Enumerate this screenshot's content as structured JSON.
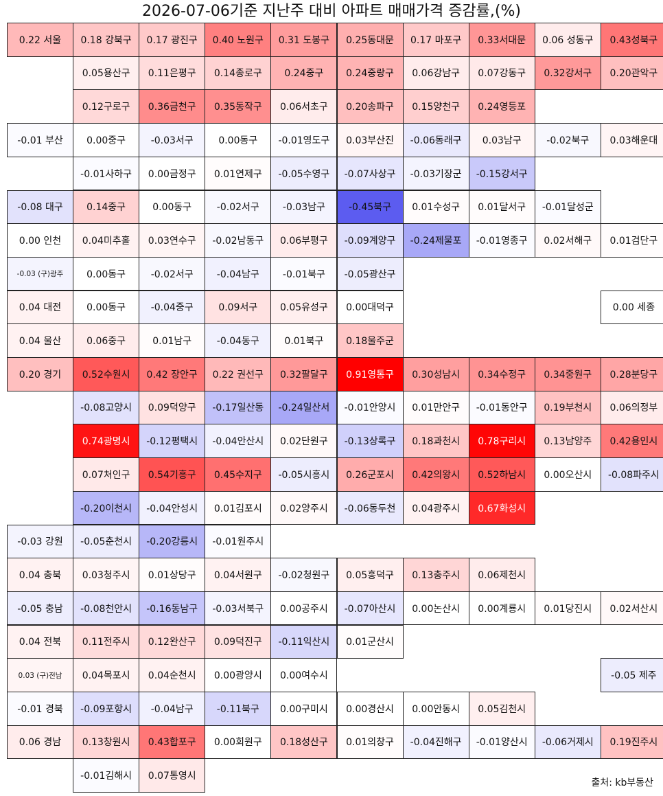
{
  "title": "2026-07-06기준 지난주 대비 아파트 매매가격 증감률,(%)",
  "source": "출처: kb부동산",
  "colors": {
    "positive": "#ff0000",
    "negative": "#5c5cf0",
    "neutral": "#ffffff",
    "border": "#222222"
  },
  "chart_data": {
    "type": "table",
    "regions": [
      {
        "name": "서울",
        "label": "0.22 서울",
        "value": 0.22,
        "rows": [
          [
            {
              "label": "0.18 강북구",
              "value": 0.18
            },
            {
              "label": "0.17 광진구",
              "value": 0.17
            },
            {
              "label": "0.40 노원구",
              "value": 0.4
            },
            {
              "label": "0.31 도봉구",
              "value": 0.31
            },
            {
              "label": "0.25동대문",
              "value": 0.25
            },
            {
              "label": "0.17 마포구",
              "value": 0.17
            },
            {
              "label": "0.33서대문",
              "value": 0.33
            },
            {
              "label": "0.06 성동구",
              "value": 0.06
            },
            {
              "label": "0.43성북구",
              "value": 0.43
            }
          ],
          [
            {
              "label": "0.05용산구",
              "value": 0.05
            },
            {
              "label": "0.11은평구",
              "value": 0.11
            },
            {
              "label": "0.14종로구",
              "value": 0.14
            },
            {
              "label": "0.24중구",
              "value": 0.24
            },
            {
              "label": "0.24중랑구",
              "value": 0.24
            },
            {
              "label": "0.06강남구",
              "value": 0.06
            },
            {
              "label": "0.07강동구",
              "value": 0.07
            },
            {
              "label": "0.32강서구",
              "value": 0.32
            },
            {
              "label": "0.20관악구",
              "value": 0.2
            }
          ],
          [
            {
              "label": "0.12구로구",
              "value": 0.12
            },
            {
              "label": "0.36금천구",
              "value": 0.36
            },
            {
              "label": "0.35동작구",
              "value": 0.35
            },
            {
              "label": "0.06서초구",
              "value": 0.06
            },
            {
              "label": "0.20송파구",
              "value": 0.2
            },
            {
              "label": "0.15양천구",
              "value": 0.15
            },
            {
              "label": "0.24영등포",
              "value": 0.24
            }
          ]
        ]
      },
      {
        "name": "부산",
        "label": "-0.01 부산",
        "value": -0.01,
        "rows": [
          [
            {
              "label": "0.00중구",
              "value": 0.0
            },
            {
              "label": "-0.03서구",
              "value": -0.03
            },
            {
              "label": "0.00동구",
              "value": 0.0
            },
            {
              "label": "-0.01영도구",
              "value": -0.01
            },
            {
              "label": "0.03부산진",
              "value": 0.03
            },
            {
              "label": "-0.06동래구",
              "value": -0.06
            },
            {
              "label": "0.03남구",
              "value": 0.03
            },
            {
              "label": "-0.02북구",
              "value": -0.02
            },
            {
              "label": "0.03해운대",
              "value": 0.03
            }
          ],
          [
            {
              "label": "-0.01사하구",
              "value": -0.01
            },
            {
              "label": "0.00금정구",
              "value": 0.0
            },
            {
              "label": "0.01연제구",
              "value": 0.01
            },
            {
              "label": "-0.05수영구",
              "value": -0.05
            },
            {
              "label": "-0.07사상구",
              "value": -0.07
            },
            {
              "label": "-0.03기장군",
              "value": -0.03
            },
            {
              "label": "-0.15강서구",
              "value": -0.15
            }
          ]
        ]
      },
      {
        "name": "대구",
        "label": "-0.08 대구",
        "value": -0.08,
        "rows": [
          [
            {
              "label": "0.14중구",
              "value": 0.14
            },
            {
              "label": "0.00동구",
              "value": 0.0
            },
            {
              "label": "-0.02서구",
              "value": -0.02
            },
            {
              "label": "-0.03남구",
              "value": -0.03
            },
            {
              "label": "-0.45북구",
              "value": -0.45
            },
            {
              "label": "0.01수성구",
              "value": 0.01
            },
            {
              "label": "0.01달서구",
              "value": 0.01
            },
            {
              "label": "-0.01달성군",
              "value": -0.01
            }
          ]
        ]
      },
      {
        "name": "인천",
        "label": "0.00 인천",
        "value": 0.0,
        "rows": [
          [
            {
              "label": "0.04미추홀",
              "value": 0.04
            },
            {
              "label": "0.03연수구",
              "value": 0.03
            },
            {
              "label": "-0.02남동구",
              "value": -0.02
            },
            {
              "label": "0.06부평구",
              "value": 0.06
            },
            {
              "label": "-0.09계양구",
              "value": -0.09
            },
            {
              "label": "-0.24제물포",
              "value": -0.24
            },
            {
              "label": "-0.01영종구",
              "value": -0.01
            },
            {
              "label": "0.02서해구",
              "value": 0.02
            },
            {
              "label": "0.01검단구",
              "value": 0.01
            }
          ]
        ]
      },
      {
        "name": "(구)광주",
        "label": "-0.03 (구)광주",
        "value": -0.03,
        "small": true,
        "rows": [
          [
            {
              "label": "0.00동구",
              "value": 0.0
            },
            {
              "label": "-0.02서구",
              "value": -0.02
            },
            {
              "label": "-0.04남구",
              "value": -0.04
            },
            {
              "label": "-0.01북구",
              "value": -0.01
            },
            {
              "label": "-0.05광산구",
              "value": -0.05
            }
          ]
        ]
      },
      {
        "name": "대전",
        "label": "0.04 대전",
        "value": 0.04,
        "rows": [
          [
            {
              "label": "0.00동구",
              "value": 0.0
            },
            {
              "label": "-0.04중구",
              "value": -0.04
            },
            {
              "label": "0.09서구",
              "value": 0.09
            },
            {
              "label": "0.05유성구",
              "value": 0.05
            },
            {
              "label": "0.00대덕구",
              "value": 0.0
            }
          ]
        ],
        "extra": {
          "label": "0.00 세종",
          "value": 0.0
        }
      },
      {
        "name": "울산",
        "label": "0.04 울산",
        "value": 0.04,
        "rows": [
          [
            {
              "label": "0.06중구",
              "value": 0.06
            },
            {
              "label": "0.01남구",
              "value": 0.01
            },
            {
              "label": "-0.04동구",
              "value": -0.04
            },
            {
              "label": "0.01북구",
              "value": 0.01
            },
            {
              "label": "0.18울주군",
              "value": 0.18
            }
          ]
        ]
      },
      {
        "name": "경기",
        "label": "0.20 경기",
        "value": 0.2,
        "rows": [
          [
            {
              "label": "0.52수원시",
              "value": 0.52
            },
            {
              "label": "0.42 장안구",
              "value": 0.42
            },
            {
              "label": "0.22 권선구",
              "value": 0.22
            },
            {
              "label": "0.32팔달구",
              "value": 0.32
            },
            {
              "label": "0.91영통구",
              "value": 0.91
            },
            {
              "label": "0.30성남시",
              "value": 0.3
            },
            {
              "label": "0.34수정구",
              "value": 0.34
            },
            {
              "label": "0.34중원구",
              "value": 0.34
            },
            {
              "label": "0.28분당구",
              "value": 0.28
            }
          ],
          [
            {
              "label": "-0.08고양시",
              "value": -0.08
            },
            {
              "label": "0.09덕양구",
              "value": 0.09
            },
            {
              "label": "-0.17일산동",
              "value": -0.17
            },
            {
              "label": "-0.24일산서",
              "value": -0.24
            },
            {
              "label": "-0.01안양시",
              "value": -0.01
            },
            {
              "label": "0.01만안구",
              "value": 0.01
            },
            {
              "label": "-0.01동안구",
              "value": -0.01
            },
            {
              "label": "0.19부천시",
              "value": 0.19
            },
            {
              "label": "0.06의정부",
              "value": 0.06
            }
          ],
          [
            {
              "label": "0.74광명시",
              "value": 0.74
            },
            {
              "label": "-0.12평택시",
              "value": -0.12
            },
            {
              "label": "-0.04안산시",
              "value": -0.04
            },
            {
              "label": "0.02단원구",
              "value": 0.02
            },
            {
              "label": "-0.13상록구",
              "value": -0.13
            },
            {
              "label": "0.18과천시",
              "value": 0.18
            },
            {
              "label": "0.78구리시",
              "value": 0.78
            },
            {
              "label": "0.13남양주",
              "value": 0.13
            },
            {
              "label": "0.42용인시",
              "value": 0.42
            }
          ],
          [
            {
              "label": "0.07처인구",
              "value": 0.07
            },
            {
              "label": "0.54기흥구",
              "value": 0.54
            },
            {
              "label": "0.45수지구",
              "value": 0.45
            },
            {
              "label": "-0.05시흥시",
              "value": -0.05
            },
            {
              "label": "0.26군포시",
              "value": 0.26
            },
            {
              "label": "0.42의왕시",
              "value": 0.42
            },
            {
              "label": "0.52하남시",
              "value": 0.52
            },
            {
              "label": "0.00오산시",
              "value": 0.0
            },
            {
              "label": "-0.08파주시",
              "value": -0.08
            }
          ],
          [
            {
              "label": "-0.20이천시",
              "value": -0.2
            },
            {
              "label": "-0.04안성시",
              "value": -0.04
            },
            {
              "label": "0.01김포시",
              "value": 0.01
            },
            {
              "label": "0.02양주시",
              "value": 0.02
            },
            {
              "label": "-0.06동두천",
              "value": -0.06
            },
            {
              "label": "0.04광주시",
              "value": 0.04
            },
            {
              "label": "0.67화성시",
              "value": 0.67
            }
          ]
        ]
      },
      {
        "name": "강원",
        "label": "-0.03 강원",
        "value": -0.03,
        "rows": [
          [
            {
              "label": "-0.05춘천시",
              "value": -0.05
            },
            {
              "label": "-0.20강릉시",
              "value": -0.2
            },
            {
              "label": "-0.01원주시",
              "value": -0.01
            }
          ]
        ]
      },
      {
        "name": "충북",
        "label": "0.04 충북",
        "value": 0.04,
        "rows": [
          [
            {
              "label": "0.03청주시",
              "value": 0.03
            },
            {
              "label": "0.01상당구",
              "value": 0.01
            },
            {
              "label": "0.04서원구",
              "value": 0.04
            },
            {
              "label": "-0.02청원구",
              "value": -0.02
            },
            {
              "label": "0.05흥덕구",
              "value": 0.05
            },
            {
              "label": "0.13충주시",
              "value": 0.13
            },
            {
              "label": "0.06제천시",
              "value": 0.06
            }
          ]
        ]
      },
      {
        "name": "충남",
        "label": "-0.05 충남",
        "value": -0.05,
        "rows": [
          [
            {
              "label": "-0.08천안시",
              "value": -0.08
            },
            {
              "label": "-0.16동남구",
              "value": -0.16
            },
            {
              "label": "-0.03서북구",
              "value": -0.03
            },
            {
              "label": "0.00공주시",
              "value": 0.0
            },
            {
              "label": "-0.07아산시",
              "value": -0.07
            },
            {
              "label": "0.00논산시",
              "value": 0.0
            },
            {
              "label": "0.00계룡시",
              "value": 0.0
            },
            {
              "label": "0.01당진시",
              "value": 0.01
            },
            {
              "label": "0.02서산시",
              "value": 0.02
            }
          ]
        ]
      },
      {
        "name": "전북",
        "label": "0.04 전북",
        "value": 0.04,
        "rows": [
          [
            {
              "label": "0.11전주시",
              "value": 0.11
            },
            {
              "label": "0.12완산구",
              "value": 0.12
            },
            {
              "label": "0.09덕진구",
              "value": 0.09
            },
            {
              "label": "-0.11익산시",
              "value": -0.11
            },
            {
              "label": "0.01군산시",
              "value": 0.01
            }
          ]
        ]
      },
      {
        "name": "(구)전남",
        "label": "0.03 (구)전남",
        "value": 0.03,
        "small": true,
        "rows": [
          [
            {
              "label": "0.04목포시",
              "value": 0.04
            },
            {
              "label": "0.04순천시",
              "value": 0.04
            },
            {
              "label": "0.00광양시",
              "value": 0.0
            },
            {
              "label": "0.00여수시",
              "value": 0.0
            }
          ]
        ],
        "extra": {
          "label": "-0.05 제주",
          "value": -0.05
        }
      },
      {
        "name": "경북",
        "label": "-0.01 경북",
        "value": -0.01,
        "rows": [
          [
            {
              "label": "-0.09포항시",
              "value": -0.09
            },
            {
              "label": "-0.04남구",
              "value": -0.04
            },
            {
              "label": "-0.11북구",
              "value": -0.11
            },
            {
              "label": "0.00구미시",
              "value": 0.0
            },
            {
              "label": "0.00경산시",
              "value": 0.0
            },
            {
              "label": "0.00안동시",
              "value": 0.0
            },
            {
              "label": "0.05김천시",
              "value": 0.05
            }
          ]
        ]
      },
      {
        "name": "경남",
        "label": "0.06 경남",
        "value": 0.06,
        "rows": [
          [
            {
              "label": "0.13창원시",
              "value": 0.13
            },
            {
              "label": "0.43합포구",
              "value": 0.43
            },
            {
              "label": "0.00회원구",
              "value": 0.0
            },
            {
              "label": "0.18성산구",
              "value": 0.18
            },
            {
              "label": "0.01의창구",
              "value": 0.01
            },
            {
              "label": "-0.04진해구",
              "value": -0.04
            },
            {
              "label": "-0.01양산시",
              "value": -0.01
            },
            {
              "label": "-0.06거제시",
              "value": -0.06
            },
            {
              "label": "0.19진주시",
              "value": 0.19
            }
          ],
          [
            {
              "label": "-0.01김해시",
              "value": -0.01
            },
            {
              "label": "0.07통영시",
              "value": 0.07
            }
          ]
        ]
      }
    ]
  }
}
